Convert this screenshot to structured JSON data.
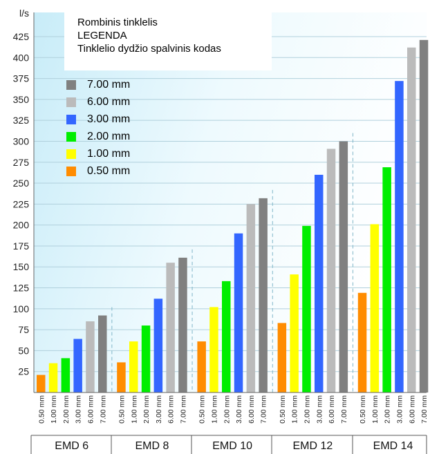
{
  "chart_data": {
    "type": "bar",
    "y_unit": "l/s",
    "ylim": [
      0,
      450
    ],
    "y_ticks": [
      25,
      50,
      75,
      100,
      125,
      150,
      175,
      200,
      225,
      250,
      275,
      300,
      325,
      350,
      375,
      400,
      425
    ],
    "groups": [
      "EMD 6",
      "EMD 8",
      "EMD 10",
      "EMD 12",
      "EMD 14"
    ],
    "sub_labels": [
      "0.50 mm",
      "1.00 mm",
      "2.00 mm",
      "3.00 mm",
      "6.00 mm",
      "7.00 mm"
    ],
    "colors": [
      "#ff8c00",
      "#ffff00",
      "#00ee00",
      "#3366ff",
      "#bbbbbb",
      "#808080"
    ],
    "values": [
      [
        21,
        35,
        41,
        64,
        85,
        92
      ],
      [
        36,
        61,
        80,
        112,
        155,
        161
      ],
      [
        61,
        102,
        133,
        190,
        225,
        232
      ],
      [
        83,
        141,
        199,
        260,
        291,
        300
      ],
      [
        119,
        201,
        269,
        372,
        412,
        421
      ]
    ],
    "legend": {
      "title_lines": [
        "Rombinis tinklelis",
        "LEGENDA",
        "Tinklelio dydžio spalvinis kodas"
      ],
      "items": [
        {
          "label": "7.00 mm",
          "color": "#808080"
        },
        {
          "label": "6.00 mm",
          "color": "#bbbbbb"
        },
        {
          "label": "3.00 mm",
          "color": "#3366ff"
        },
        {
          "label": "2.00 mm",
          "color": "#00ee00"
        },
        {
          "label": "1.00 mm",
          "color": "#ffff00"
        },
        {
          "label": "0.50 mm",
          "color": "#ff8c00"
        }
      ]
    }
  }
}
